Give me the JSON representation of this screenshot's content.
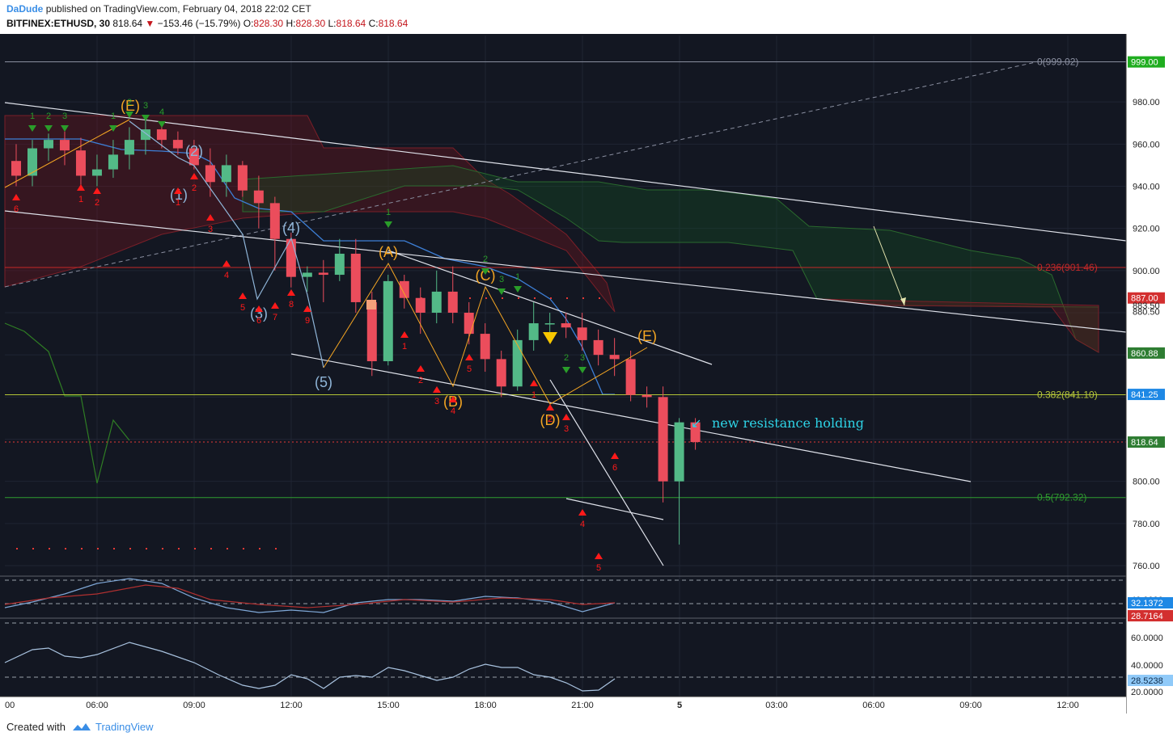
{
  "header": {
    "author": "DaDude",
    "published_text": "published on TradingView.com, February 04, 2018 22:02 CET",
    "symbol": "BITFINEX:ETHUSD, 30",
    "last": "818.64",
    "change": "−153.46 (−15.79%)",
    "o_label": "O:",
    "o_value": "828.30",
    "h_label": "H:",
    "h_value": "828.30",
    "l_label": "L:",
    "l_value": "818.64",
    "c_label": "C:",
    "c_value": "818.64"
  },
  "footer": {
    "created_with": "Created with",
    "brand": "TradingView"
  },
  "annotation": {
    "text": "new resistance holding"
  },
  "colors": {
    "bg": "#131722",
    "up": "#53b987",
    "down": "#eb4d5c",
    "orange": "#f5a623",
    "wave_blue": "#8fb5d8",
    "kijun": "#3d7fd6",
    "lagging": "#2f7d24",
    "fib_red": "#c62828",
    "fib_yellow": "#b5c638",
    "fib_green": "#2f9e2f",
    "trend_white": "#e0e3eb",
    "cyan": "#2ed3e6",
    "td_green": "#2a9d2a",
    "td_red": "#ff1a1a"
  },
  "price_axis": {
    "labels": [
      "999.00",
      "980.00",
      "960.00",
      "940.00",
      "920.00",
      "900.00",
      "887.00",
      "883.50",
      "880.50",
      "860.88",
      "841.25",
      "818.64",
      "800.00",
      "780.00",
      "760.00"
    ]
  },
  "price_tags": [
    {
      "value": "999.00",
      "color": "#1fad1f"
    },
    {
      "value": "887.00",
      "color": "#d32f2f"
    },
    {
      "value": "860.88",
      "color": "#2e7d32"
    },
    {
      "value": "841.25",
      "color": "#1e88e5"
    },
    {
      "value": "818.64",
      "color": "#2e7d32"
    }
  ],
  "time_axis": {
    "labels": [
      "00",
      "06:00",
      "09:00",
      "12:00",
      "15:00",
      "18:00",
      "21:00",
      "5",
      "03:00",
      "06:00",
      "09:00",
      "12:00"
    ]
  },
  "fib_labels": [
    "0(999.02)",
    "0.236(901.46)",
    "0.382(841.10)",
    "0.5(792.32)"
  ],
  "wave_labels": {
    "blue": [
      "(1)",
      "(2)",
      "(3)",
      "(4)",
      "(5)"
    ],
    "orange": [
      "(E)",
      "(A)",
      "(B)",
      "(C)",
      "(D)",
      "(E)"
    ]
  },
  "td_counts": {
    "green": [
      "1",
      "2",
      "3",
      "1",
      "2",
      "3",
      "4",
      "1",
      "2",
      "3",
      "1",
      "2",
      "3"
    ],
    "red": [
      "6",
      "1",
      "2",
      "1",
      "2",
      "3",
      "4",
      "5",
      "6",
      "7",
      "8",
      "9",
      "1",
      "2",
      "3",
      "4",
      "5",
      "1",
      "2",
      "3",
      "4",
      "5",
      "6"
    ]
  },
  "osc1": {
    "axis_labels": [
      "40.0000"
    ],
    "tags": [
      {
        "value": "32.1372",
        "color": "#1e88e5"
      },
      {
        "value": "28.7164",
        "color": "#d32f2f"
      }
    ]
  },
  "osc2": {
    "axis_labels": [
      "60.0000",
      "40.0000",
      "20.0000"
    ],
    "tags": [
      {
        "value": "28.5238",
        "color": "#90caf9"
      }
    ]
  },
  "chart_data": {
    "type": "candlestick",
    "symbol": "BITFINEX:ETHUSD",
    "interval": "30",
    "ylim": [
      750,
      1010
    ],
    "x": [
      "00:00",
      "00:30",
      "01:00",
      "01:30",
      "02:00",
      "02:30",
      "03:00",
      "03:30",
      "04:00",
      "04:30",
      "05:00",
      "05:30",
      "06:00",
      "06:30",
      "07:00",
      "07:30",
      "08:00",
      "08:30",
      "09:00",
      "09:30",
      "10:00",
      "10:30",
      "11:00",
      "11:30",
      "12:00",
      "12:30",
      "13:00",
      "13:30",
      "14:00",
      "14:30",
      "15:00",
      "15:30",
      "16:00",
      "16:30",
      "17:00",
      "17:30",
      "18:00",
      "18:30",
      "19:00",
      "19:30",
      "20:00",
      "20:30",
      "21:00",
      "21:30",
      "22:00"
    ],
    "candles": [
      [
        952,
        960,
        940,
        945
      ],
      [
        945,
        962,
        940,
        958
      ],
      [
        958,
        965,
        952,
        962
      ],
      [
        962,
        966,
        950,
        957
      ],
      [
        957,
        963,
        940,
        945
      ],
      [
        945,
        955,
        940,
        948
      ],
      [
        948,
        962,
        944,
        955
      ],
      [
        955,
        968,
        948,
        962
      ],
      [
        962,
        972,
        955,
        967
      ],
      [
        967,
        970,
        958,
        962
      ],
      [
        962,
        966,
        955,
        958
      ],
      [
        958,
        962,
        948,
        950
      ],
      [
        950,
        958,
        935,
        942
      ],
      [
        942,
        955,
        935,
        950
      ],
      [
        950,
        952,
        935,
        938
      ],
      [
        938,
        945,
        920,
        932
      ],
      [
        932,
        935,
        900,
        915
      ],
      [
        915,
        918,
        892,
        897
      ],
      [
        897,
        902,
        890,
        899
      ],
      [
        899,
        905,
        885,
        898
      ],
      [
        898,
        915,
        895,
        908
      ],
      [
        908,
        915,
        880,
        885
      ],
      [
        885,
        890,
        850,
        857
      ],
      [
        857,
        898,
        855,
        895
      ],
      [
        895,
        898,
        882,
        887
      ],
      [
        887,
        892,
        870,
        880
      ],
      [
        880,
        900,
        875,
        890
      ],
      [
        890,
        902,
        875,
        880
      ],
      [
        880,
        885,
        865,
        870
      ],
      [
        870,
        875,
        852,
        858
      ],
      [
        858,
        862,
        840,
        845
      ],
      [
        845,
        872,
        843,
        867
      ],
      [
        867,
        885,
        862,
        875
      ],
      [
        875,
        880,
        870,
        875
      ],
      [
        875,
        880,
        868,
        873
      ],
      [
        873,
        880,
        862,
        867
      ],
      [
        867,
        872,
        855,
        860
      ],
      [
        860,
        868,
        850,
        858
      ],
      [
        858,
        862,
        838,
        841
      ],
      [
        841,
        845,
        835,
        840
      ],
      [
        840,
        845,
        790,
        800
      ],
      [
        800,
        830,
        770,
        828
      ],
      [
        828,
        830,
        815,
        818.64
      ],
      [
        818.64,
        818.64,
        818.64,
        818.64
      ],
      [
        818.64,
        818.64,
        818.64,
        818.64
      ]
    ],
    "fibonacci": [
      {
        "level": "0",
        "price": 999.02
      },
      {
        "level": "0.236",
        "price": 901.46
      },
      {
        "level": "0.382",
        "price": 841.1
      },
      {
        "level": "0.5",
        "price": 792.32
      }
    ],
    "last_price": 818.64
  }
}
